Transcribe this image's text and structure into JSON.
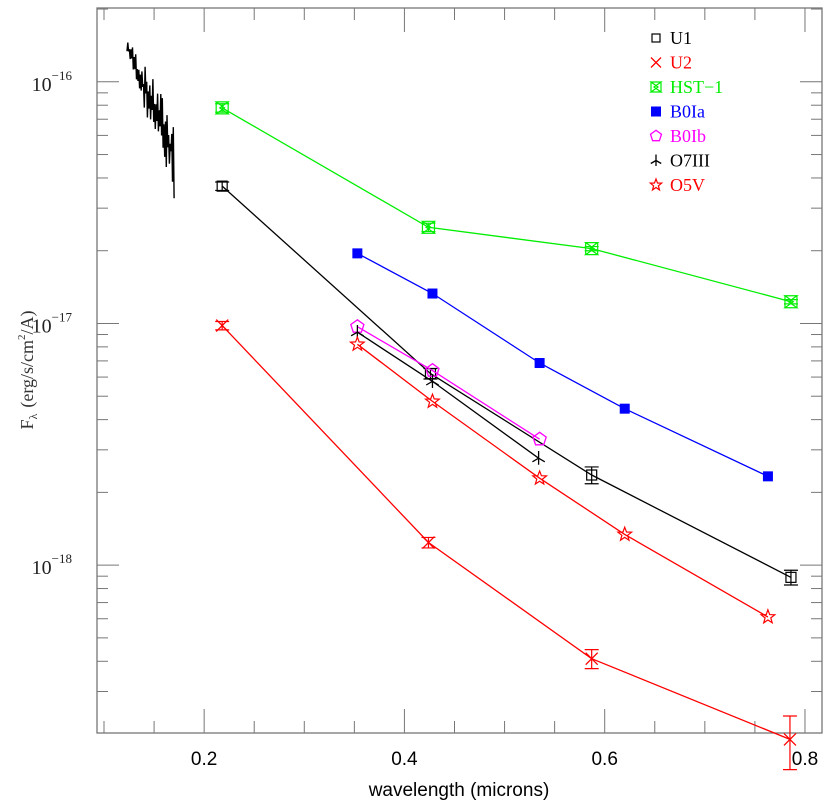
{
  "chart_data": {
    "type": "line",
    "title": "",
    "xlabel": "wavelength (microns)",
    "ylabel": "F_λ (erg/s/cm²/A)",
    "ylabel_parts": {
      "main": "F",
      "sub": "λ",
      "units_pre": "(erg/s/cm",
      "units_sup": "2",
      "units_post": "/A)"
    },
    "xscale": "linear",
    "yscale": "log",
    "xlim": [
      0.093,
      0.817
    ],
    "ylim": [
      2.02e-19,
      2.02e-16
    ],
    "grid": false,
    "legend_position": "upper right",
    "x_ticks": [
      {
        "value": 0.2,
        "label": "0.2"
      },
      {
        "value": 0.4,
        "label": "0.4"
      },
      {
        "value": 0.6,
        "label": "0.6"
      },
      {
        "value": 0.8,
        "label": "0.8"
      }
    ],
    "y_ticks": [
      {
        "value": 1e-16,
        "base": "10",
        "exp": "−16"
      },
      {
        "value": 1e-17,
        "base": "10",
        "exp": "−17"
      },
      {
        "value": 1e-18,
        "base": "10",
        "exp": "−18"
      }
    ],
    "series": [
      {
        "name": "U1",
        "color": "#000000",
        "marker": "open-square",
        "x": [
          0.218,
          0.426,
          0.587,
          0.786
        ],
        "y": [
          3.7e-17,
          6.2e-18,
          2.36e-18,
          8.9e-19
        ],
        "yerr_rel": [
          0.04,
          0.05,
          0.08,
          0.07
        ]
      },
      {
        "name": "U2",
        "color": "#ff0000",
        "marker": "cross",
        "x": [
          0.218,
          0.424,
          0.587,
          0.785
        ],
        "y": [
          9.8e-18,
          1.24e-18,
          4.1e-19,
          1.9e-19
        ],
        "yerr_rel": [
          0.04,
          0.05,
          0.09,
          0.25
        ]
      },
      {
        "name": "HST-1",
        "color": "#00ee00",
        "marker": "hourglass-star",
        "x": [
          0.218,
          0.424,
          0.587,
          0.786
        ],
        "y": [
          7.8e-17,
          2.5e-17,
          2.04e-17,
          1.23e-17
        ],
        "yerr_rel": [
          0.04,
          0.04,
          0.02,
          0.02
        ]
      },
      {
        "name": "B0Ia",
        "color": "#0000ff",
        "marker": "filled-square",
        "x": [
          0.353,
          0.428,
          0.535,
          0.62,
          0.763
        ],
        "y": [
          1.95e-17,
          1.33e-17,
          6.86e-18,
          4.44e-18,
          2.33e-18
        ]
      },
      {
        "name": "B0Ib",
        "color": "#ff00ff",
        "marker": "open-pentagon",
        "x": [
          0.353,
          0.428,
          0.535
        ],
        "y": [
          9.7e-18,
          6.38e-18,
          3.32e-18
        ]
      },
      {
        "name": "O7III",
        "color": "#000000",
        "marker": "asterisk",
        "x": [
          0.353,
          0.428,
          0.534
        ],
        "y": [
          9.2e-18,
          5.76e-18,
          2.77e-18
        ]
      },
      {
        "name": "O5V",
        "color": "#ff0000",
        "marker": "open-star",
        "x": [
          0.353,
          0.428,
          0.535,
          0.62,
          0.763
        ],
        "y": [
          8.2e-18,
          4.76e-18,
          2.29e-18,
          1.34e-18,
          6.1e-19
        ]
      }
    ],
    "spectrum": {
      "name": "UV spectrum",
      "color": "#000000",
      "x_range": [
        0.123,
        0.17
      ],
      "y_range": [
        1.4e-16,
        4.9e-17
      ],
      "description": "noisy UV spectrum segment decreasing from ~1.4e-16 to ~5e-17"
    }
  },
  "legend": {
    "items": [
      {
        "label": "U1",
        "color": "#000000",
        "marker": "open-square"
      },
      {
        "label": "U2",
        "color": "#ff0000",
        "marker": "cross"
      },
      {
        "label": "HST−1",
        "color": "#00ee00",
        "marker": "hourglass-star"
      },
      {
        "label": "B0Ia",
        "color": "#0000ff",
        "marker": "filled-square"
      },
      {
        "label": "B0Ib",
        "color": "#ff00ff",
        "marker": "open-pentagon"
      },
      {
        "label": "O7III",
        "color": "#000000",
        "marker": "asterisk"
      },
      {
        "label": "O5V",
        "color": "#ff0000",
        "marker": "open-star"
      }
    ]
  },
  "axes": {
    "xlabel": "wavelength (microns)",
    "ylabel": "F_λ (erg/s/cm²/A)"
  }
}
